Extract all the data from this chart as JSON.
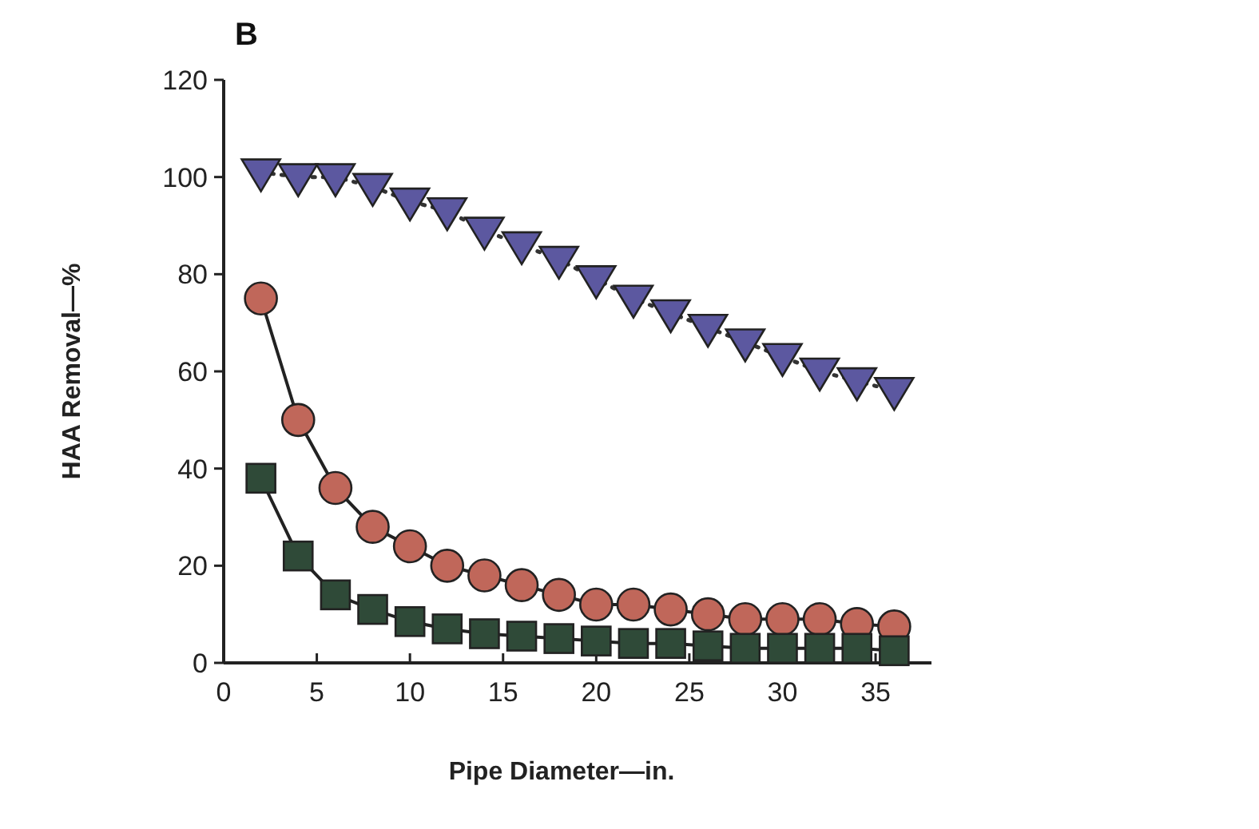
{
  "chart_data": {
    "type": "line",
    "title": "B",
    "xlabel": "Pipe Diameter—in.",
    "ylabel": "HAA Removal—%",
    "x": [
      2,
      4,
      6,
      8,
      10,
      12,
      14,
      16,
      18,
      20,
      22,
      24,
      26,
      28,
      30,
      32,
      34,
      36
    ],
    "xlim": [
      0,
      38
    ],
    "ylim": [
      0,
      120
    ],
    "xticks": [
      0,
      5,
      10,
      15,
      20,
      25,
      30,
      35
    ],
    "yticks": [
      0,
      20,
      40,
      60,
      80,
      100,
      120
    ],
    "series": [
      {
        "color": "#5c58a0",
        "marker": "triangle",
        "line_style": "dotted",
        "values": [
          101,
          100,
          100,
          98,
          95,
          93,
          89,
          86,
          83,
          79,
          75,
          72,
          69,
          66,
          63,
          60,
          58,
          56
        ]
      },
      {
        "color": "#c0675a",
        "marker": "circle",
        "line_style": "solid",
        "values": [
          75,
          50,
          36,
          28,
          24,
          20,
          18,
          16,
          14,
          12,
          12,
          11,
          10,
          9,
          9,
          9,
          8,
          7.5
        ]
      },
      {
        "color": "#2f4a38",
        "marker": "square",
        "line_style": "solid",
        "values": [
          38,
          22,
          14,
          11,
          8.5,
          7,
          6,
          5.5,
          5,
          4.5,
          4,
          4,
          3.5,
          3,
          3,
          3,
          3,
          2.5
        ]
      }
    ]
  }
}
